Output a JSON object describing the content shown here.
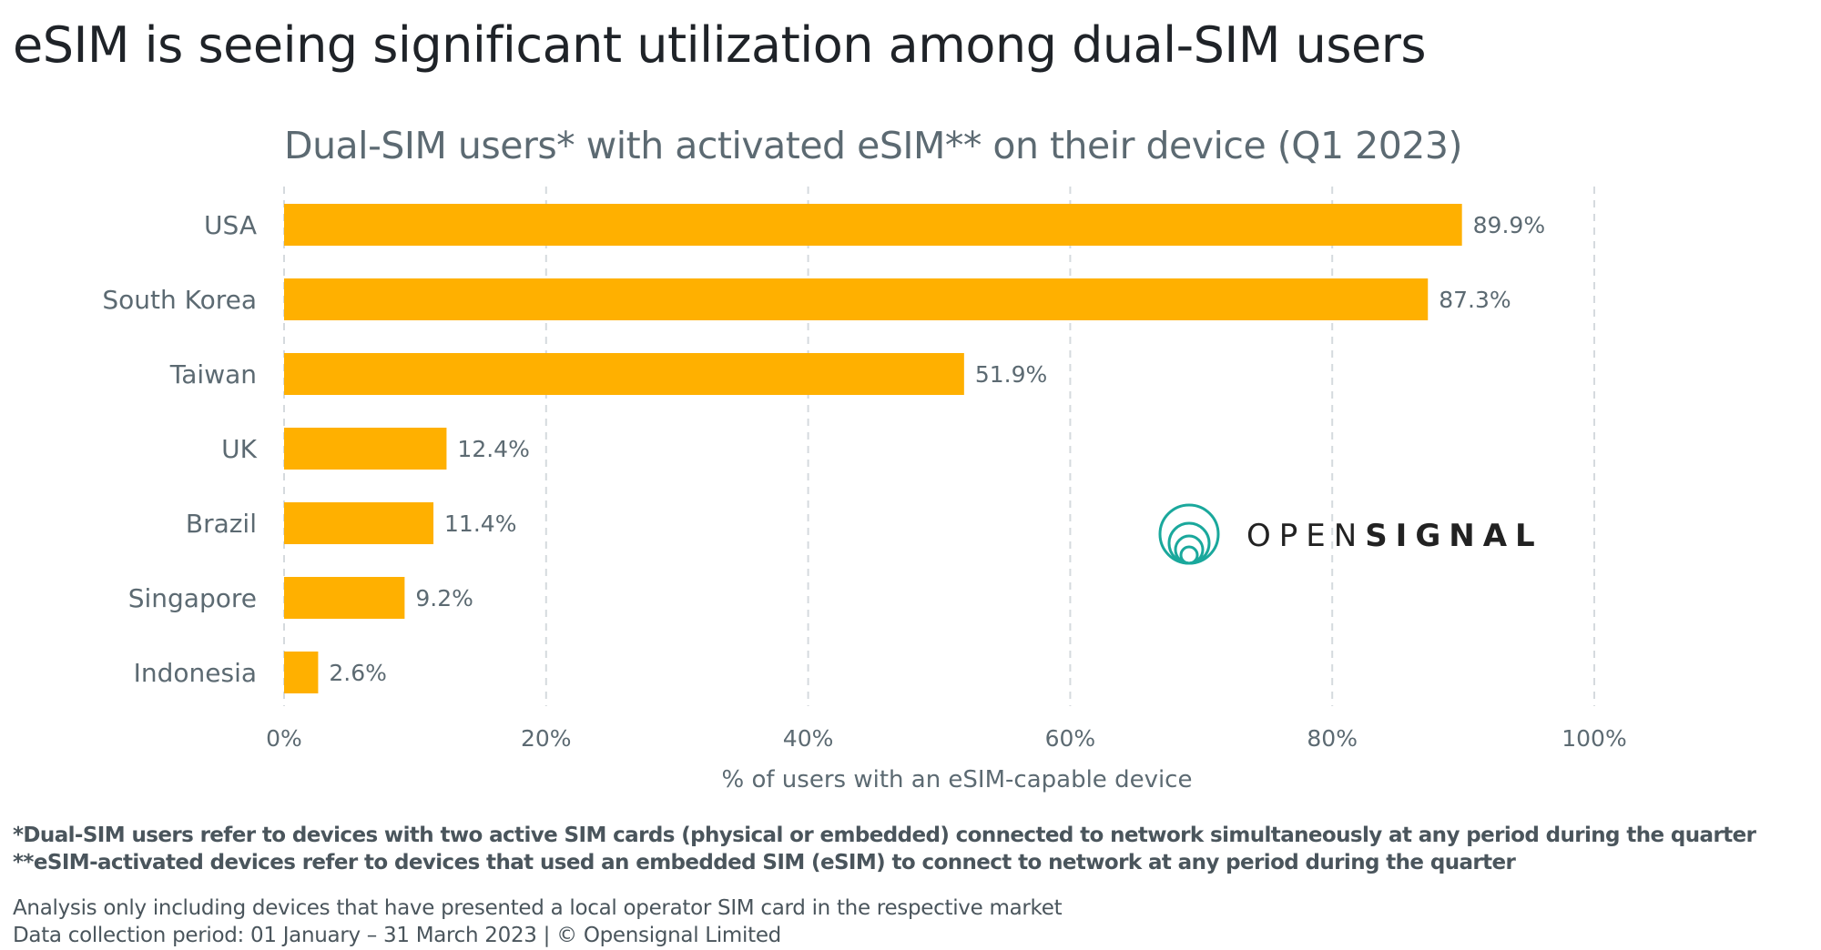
{
  "title": "eSIM is seeing significant utilization among dual-SIM users",
  "footnotes": [
    "*Dual-SIM users refer to devices with two active SIM cards  (physical or embedded) connected to network simultaneously at any period during the quarter",
    "**eSIM-activated devices refer to devices that used an embedded SIM (eSIM) to connect to network at any period during the quarter"
  ],
  "notes": [
    "Analysis only including devices that have presented a local operator SIM card in the respective market",
    "Data collection period: 01 January – 31 March 2023  | © Opensignal Limited"
  ],
  "logo": {
    "text_light": "OPEN",
    "text_bold": "SIGNAL",
    "color": "#1aa89c"
  },
  "chart_data": {
    "type": "bar",
    "orientation": "horizontal",
    "title": "Dual-SIM users* with activated eSIM** on their device (Q1 2023)",
    "xlabel": "% of users with an eSIM-capable device",
    "ylabel": "",
    "categories": [
      "USA",
      "South Korea",
      "Taiwan",
      "UK",
      "Brazil",
      "Singapore",
      "Indonesia"
    ],
    "values": [
      89.9,
      87.3,
      51.9,
      12.4,
      11.4,
      9.2,
      2.6
    ],
    "data_labels": [
      "89.9%",
      "87.3%",
      "51.9%",
      "12.4%",
      "11.4%",
      "9.2%",
      "2.6%"
    ],
    "xlim": [
      0,
      100
    ],
    "xticks": [
      0,
      20,
      40,
      60,
      80,
      100
    ],
    "xtick_labels": [
      "0%",
      "20%",
      "40%",
      "60%",
      "80%",
      "100%"
    ],
    "grid": "vertical dashed",
    "bar_color": "#FFB000"
  }
}
